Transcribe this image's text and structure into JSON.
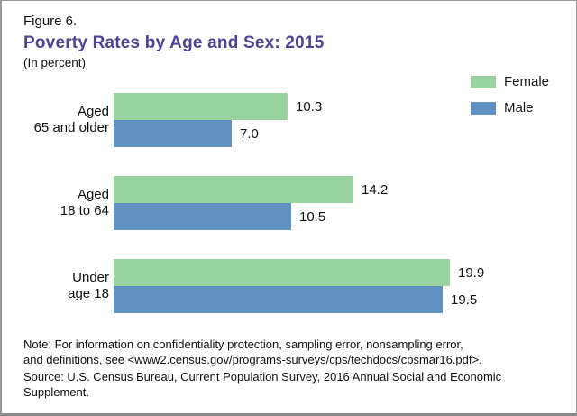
{
  "header": {
    "figure_label": "Figure 6.",
    "title": "Poverty Rates by Age and Sex: 2015",
    "subtitle": "(In percent)"
  },
  "legend": {
    "items": [
      {
        "label": "Female",
        "color": "#99d3a0"
      },
      {
        "label": "Male",
        "color": "#6191c1"
      }
    ]
  },
  "chart_data": {
    "type": "bar",
    "orientation": "horizontal",
    "title": "Poverty Rates by Age and Sex: 2015",
    "units": "percent",
    "categories": [
      "Aged 65 and older",
      "Aged 18 to 64",
      "Under age 18"
    ],
    "category_label_lines": [
      [
        "Aged",
        "65 and older"
      ],
      [
        "Aged",
        "18 to 64"
      ],
      [
        "Under",
        "age 18"
      ]
    ],
    "series": [
      {
        "name": "Female",
        "color": "#99d3a0",
        "values": [
          10.3,
          14.2,
          19.9
        ]
      },
      {
        "name": "Male",
        "color": "#6191c1",
        "values": [
          7.0,
          10.5,
          19.5
        ]
      }
    ],
    "xlabel": "",
    "ylabel": "",
    "xlim": [
      0,
      20
    ],
    "grid": false,
    "axes_visible": false,
    "data_labels": true,
    "legend_position": "top-right"
  },
  "footer": {
    "note_line1": "Note: For information on confidentiality protection, sampling error, nonsampling error,",
    "note_line2": "and definitions, see <www2.census.gov/programs-surveys/cps/techdocs/cpsmar16.pdf>.",
    "source": "Source: U.S. Census Bureau, Current Population Survey, 2016 Annual Social and Economic Supplement."
  },
  "colors": {
    "title_purple": "#4f4193",
    "female_green": "#99d3a0",
    "male_blue": "#6191c1",
    "border_gray": "#979797",
    "text": "#111111"
  }
}
